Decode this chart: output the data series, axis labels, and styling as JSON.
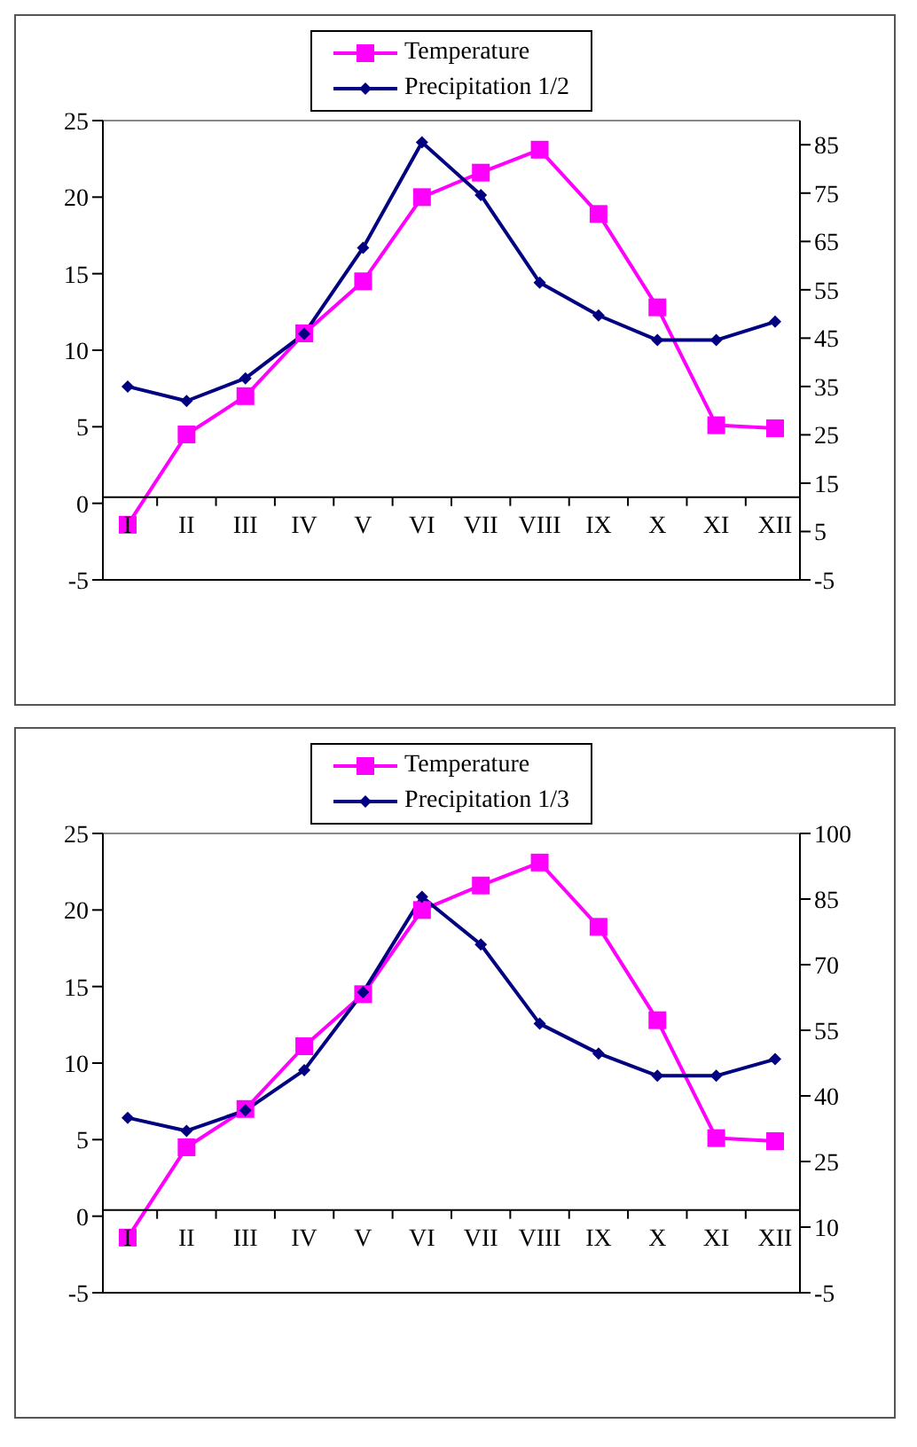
{
  "chart_data": [
    {
      "type": "line",
      "categories": [
        "I",
        "II",
        "III",
        "IV",
        "V",
        "VI",
        "VII",
        "VIII",
        "IX",
        "X",
        "XI",
        "XII"
      ],
      "series": [
        {
          "name": "Temperature",
          "color": "#ff00ff",
          "marker": "square",
          "values": [
            -1.4,
            4.5,
            7.0,
            11.1,
            14.5,
            20.0,
            21.6,
            23.1,
            18.9,
            12.8,
            5.1,
            4.9
          ]
        },
        {
          "name": "Precipitation 1/2",
          "color": "#000080",
          "marker": "diamond",
          "axis": "y2",
          "values": [
            35,
            32,
            36.7,
            45.9,
            63.7,
            85.5,
            74.6,
            56.5,
            49.7,
            44.6,
            44.6,
            48.4
          ]
        }
      ],
      "ylim": [
        -5,
        25
      ],
      "yticks": [
        -5,
        0,
        5,
        10,
        15,
        20,
        25
      ],
      "y2lim": [
        -5,
        90
      ],
      "y2ticks": [
        -5,
        5,
        15,
        25,
        35,
        45,
        55,
        65,
        75,
        85
      ],
      "grid": false,
      "legend": "top"
    },
    {
      "type": "line",
      "categories": [
        "I",
        "II",
        "III",
        "IV",
        "V",
        "VI",
        "VII",
        "VIII",
        "IX",
        "X",
        "XI",
        "XII"
      ],
      "series": [
        {
          "name": "Temperature",
          "color": "#ff00ff",
          "marker": "square",
          "values": [
            -1.4,
            4.5,
            7.0,
            11.1,
            14.5,
            20.0,
            21.6,
            23.1,
            18.9,
            12.8,
            5.1,
            4.9
          ]
        },
        {
          "name": "Precipitation 1/3",
          "color": "#000080",
          "marker": "diamond",
          "axis": "y2",
          "values": [
            35,
            32,
            36.7,
            45.9,
            63.7,
            85.5,
            74.6,
            56.5,
            49.7,
            44.6,
            44.6,
            48.4
          ]
        }
      ],
      "ylim": [
        -5,
        25
      ],
      "yticks": [
        -5,
        0,
        5,
        10,
        15,
        20,
        25
      ],
      "y2lim": [
        -5,
        100
      ],
      "y2ticks": [
        -5,
        10,
        25,
        40,
        55,
        70,
        85,
        100
      ],
      "grid": false,
      "legend": "top"
    }
  ]
}
